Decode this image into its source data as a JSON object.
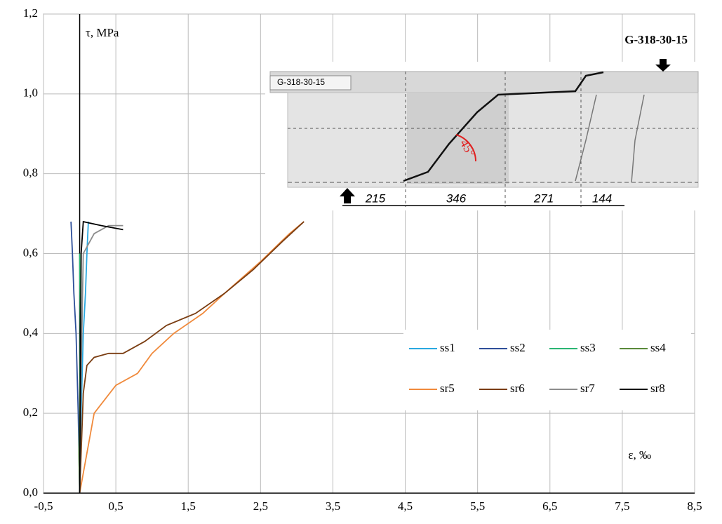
{
  "chart_data": {
    "type": "line",
    "title": "G-318-30-15",
    "y_label": "τ, MPa",
    "x_label": "ε, ‰",
    "inset": {
      "label": "G-318-30-15",
      "dimensions": [
        "215",
        "346",
        "271",
        "144"
      ],
      "angle": "45°"
    },
    "xlim": [
      -0.5,
      8.5
    ],
    "xticks": [
      {
        "value": -0.5,
        "label": "-0,5"
      },
      {
        "value": 0.5,
        "label": "0,5"
      },
      {
        "value": 1.5,
        "label": "1,5"
      },
      {
        "value": 2.5,
        "label": "2,5"
      },
      {
        "value": 3.5,
        "label": "3,5"
      },
      {
        "value": 4.5,
        "label": "4,5"
      },
      {
        "value": 5.5,
        "label": "5,5"
      },
      {
        "value": 6.5,
        "label": "6,5"
      },
      {
        "value": 7.5,
        "label": "7,5"
      },
      {
        "value": 8.5,
        "label": "8,5"
      }
    ],
    "ylim": [
      0,
      1.2
    ],
    "yticks": [
      {
        "value": 0,
        "label": "0,0"
      },
      {
        "value": 0.2,
        "label": "0,2"
      },
      {
        "value": 0.4,
        "label": "0,4"
      },
      {
        "value": 0.6,
        "label": "0,6"
      },
      {
        "value": 0.8,
        "label": "0,8"
      },
      {
        "value": 1.0,
        "label": "1,0"
      },
      {
        "value": 1.2,
        "label": "1,2"
      }
    ],
    "grid": true,
    "series": [
      {
        "name": "ss1",
        "color": "#29a8e0",
        "x": [
          0,
          0.02,
          0.05,
          0.08,
          0.1,
          0.12
        ],
        "values": [
          0,
          0.2,
          0.4,
          0.5,
          0.6,
          0.68
        ]
      },
      {
        "name": "ss2",
        "color": "#2e4f9a",
        "x": [
          0,
          -0.02,
          -0.05,
          -0.08,
          -0.1,
          -0.12
        ],
        "values": [
          0,
          0.2,
          0.4,
          0.5,
          0.6,
          0.68
        ]
      },
      {
        "name": "ss3",
        "color": "#2bb673",
        "x": [
          0,
          0.0,
          0.01,
          0.0
        ],
        "values": [
          0,
          0.2,
          0.4,
          0.6
        ]
      },
      {
        "name": "ss4",
        "color": "#5a8a3a",
        "x": [
          0,
          -0.01,
          0,
          0.01
        ],
        "values": [
          0,
          0.1,
          0.2,
          0.3
        ]
      },
      {
        "name": "sr5",
        "color": "#f08a3c",
        "x": [
          0,
          0.1,
          0.2,
          0.5,
          0.8,
          1.0,
          1.3,
          1.7,
          2.0,
          2.5,
          2.9,
          3.1
        ],
        "values": [
          0,
          0.1,
          0.2,
          0.27,
          0.3,
          0.35,
          0.4,
          0.45,
          0.5,
          0.58,
          0.65,
          0.68
        ]
      },
      {
        "name": "sr6",
        "color": "#7a3d12",
        "x": [
          0,
          0.05,
          0.1,
          0.2,
          0.4,
          0.6,
          0.9,
          1.2,
          1.6,
          2.0,
          2.4,
          2.8,
          3.1
        ],
        "values": [
          0,
          0.25,
          0.32,
          0.34,
          0.35,
          0.35,
          0.38,
          0.42,
          0.45,
          0.5,
          0.56,
          0.63,
          0.68
        ]
      },
      {
        "name": "sr7",
        "color": "#8c8c8c",
        "x": [
          0,
          0.02,
          0.05,
          0.2,
          0.4,
          0.6
        ],
        "values": [
          0,
          0.3,
          0.6,
          0.65,
          0.67,
          0.67
        ]
      },
      {
        "name": "sr8",
        "color": "#000000",
        "x": [
          0,
          0.01,
          0.02,
          0.05,
          0.3,
          0.6
        ],
        "values": [
          0,
          0.3,
          0.6,
          0.68,
          0.67,
          0.66
        ]
      }
    ]
  }
}
